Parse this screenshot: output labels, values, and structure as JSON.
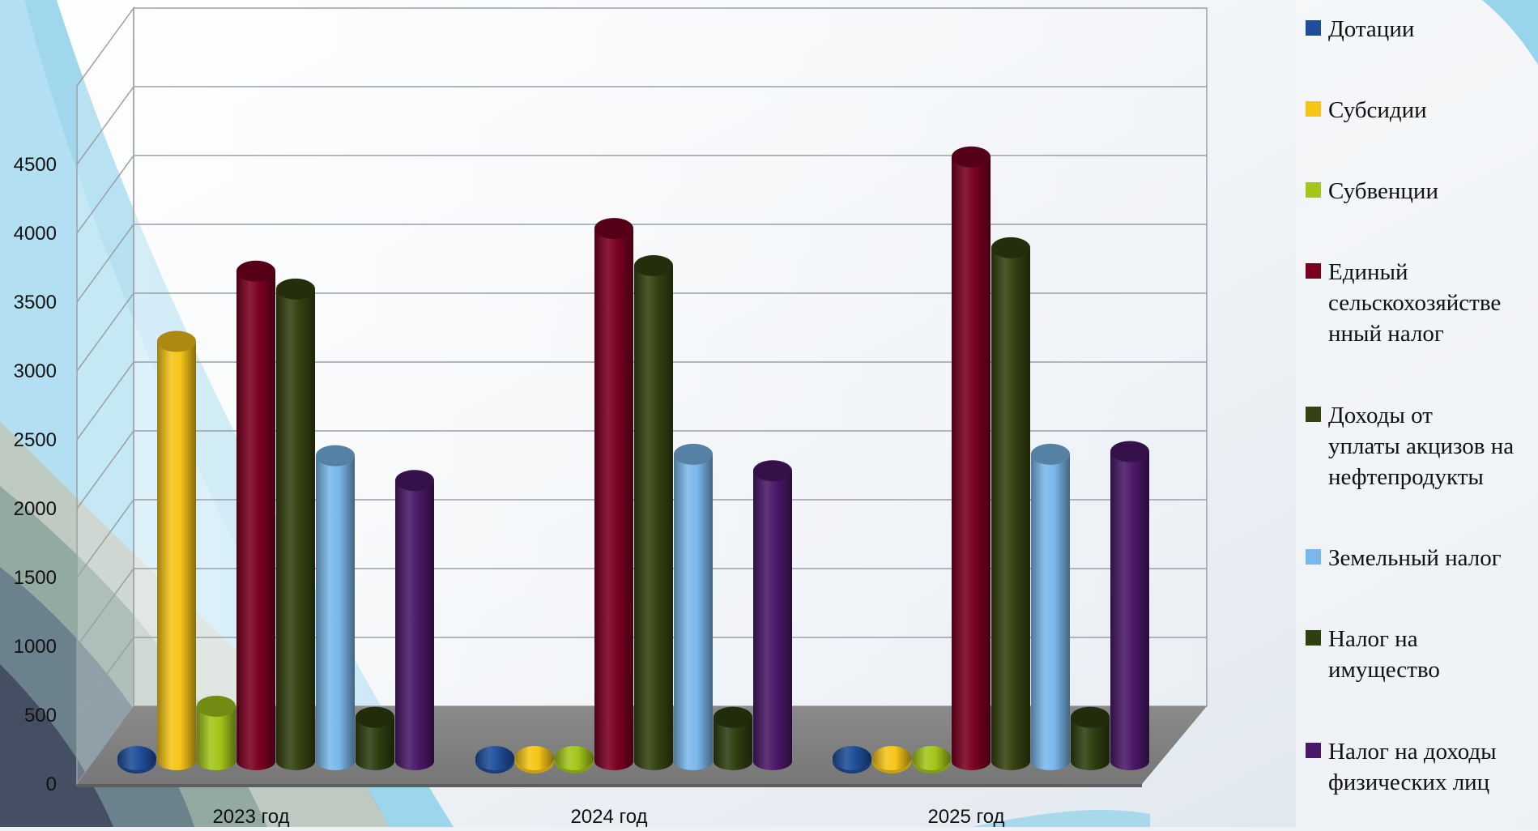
{
  "chart_data": {
    "type": "bar",
    "title": "",
    "xlabel": "",
    "ylabel": "",
    "categories": [
      "2023 год",
      "2024 год",
      "2025 год"
    ],
    "ylim": [
      0,
      4500
    ],
    "yticks": [
      "0",
      "500",
      "1000",
      "1500",
      "2000",
      "2500",
      "3000",
      "3500",
      "4000",
      "4500"
    ],
    "grid": true,
    "legend_position": "right",
    "series": [
      {
        "name": "Дотации",
        "color": "#1f4e99",
        "values": [
          0,
          0,
          0
        ]
      },
      {
        "name": "Субсидии",
        "color": "#f5c518",
        "values": [
          3050,
          0,
          0
        ]
      },
      {
        "name": "Субвенции",
        "color": "#a3c61a",
        "values": [
          400,
          0,
          0
        ]
      },
      {
        "name": "Единый сельскохозяйственный налог",
        "color": "#7a0020",
        "values": [
          3560,
          3870,
          4390
        ]
      },
      {
        "name": "Доходы от уплаты акцизов на нефтепродукты",
        "color": "#344211",
        "values": [
          3430,
          3600,
          3730
        ]
      },
      {
        "name": "Земельный налог",
        "color": "#7ab8ec",
        "values": [
          2220,
          2230,
          2230
        ]
      },
      {
        "name": "Налог на имущество",
        "color": "#2e3f10",
        "values": [
          320,
          320,
          320
        ]
      },
      {
        "name": "Налог на доходы физических лиц",
        "color": "#4a1868",
        "values": [
          2040,
          2110,
          2250
        ]
      }
    ]
  },
  "legend_lines": [
    [
      "Дотации"
    ],
    [
      "Субсидии"
    ],
    [
      "Субвенции"
    ],
    [
      "Единый",
      "сельскохозяйстве",
      "нный налог"
    ],
    [
      "Доходы от",
      "уплаты акцизов на",
      "нефтепродукты"
    ],
    [
      "Земельный налог"
    ],
    [
      "Налог на",
      "имущество"
    ],
    [
      "Налог на доходы",
      "физических лиц"
    ]
  ]
}
